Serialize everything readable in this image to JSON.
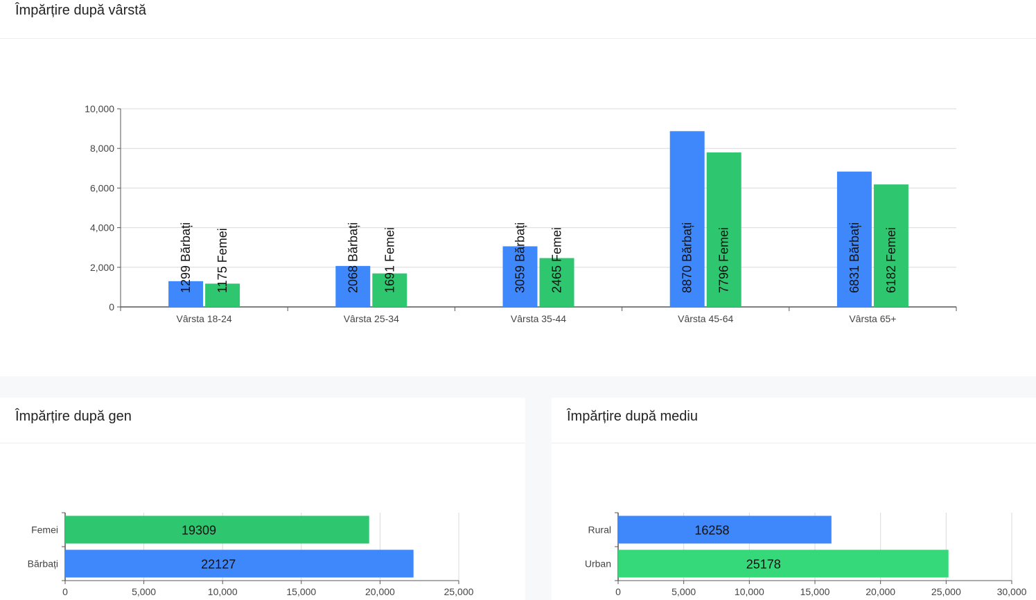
{
  "cards": {
    "age": {
      "title": "Împărțire după vârstă"
    },
    "gender": {
      "title": "Împărțire după gen"
    },
    "env": {
      "title": "Împărțire după mediu"
    }
  },
  "colors": {
    "blue": "#3f88fb",
    "green": "#2ec66e",
    "green_light": "#36d97a",
    "grid": "#d9d9d9",
    "axis": "#555555"
  },
  "chart_data": [
    {
      "type": "bar",
      "title": "Împărțire după vârstă",
      "categories": [
        "Vârsta 18-24",
        "Vârsta 25-34",
        "Vârsta 35-44",
        "Vârsta 45-64",
        "Vârsta 65+"
      ],
      "series": [
        {
          "name": "Bărbați",
          "color": "#3f88fb",
          "values": [
            1299,
            2068,
            3059,
            8870,
            6831
          ],
          "labels": [
            "1299 Bărbați",
            "2068 Bărbați",
            "3059 Bărbați",
            "8870 Bărbați",
            "6831 Bărbați"
          ]
        },
        {
          "name": "Femei",
          "color": "#2ec66e",
          "values": [
            1175,
            1691,
            2465,
            7796,
            6182
          ],
          "labels": [
            "1175 Femei",
            "1691 Femei",
            "2465 Femei",
            "7796 Femei",
            "6182 Femei"
          ]
        }
      ],
      "ylim": [
        0,
        10000
      ],
      "yticks": [
        "0",
        "2,000",
        "4,000",
        "6,000",
        "8,000",
        "10,000"
      ],
      "ytick_values": [
        0,
        2000,
        4000,
        6000,
        8000,
        10000
      ],
      "grid": true
    },
    {
      "type": "bar",
      "orientation": "horizontal",
      "title": "Împărțire după gen",
      "categories": [
        "Femei",
        "Bărbați"
      ],
      "values": [
        19309,
        22127
      ],
      "labels": [
        "19309",
        "22127"
      ],
      "colors": [
        "#2ec66e",
        "#3f88fb"
      ],
      "xlim": [
        0,
        25000
      ],
      "xticks": [
        "0",
        "5,000",
        "10,000",
        "15,000",
        "20,000",
        "25,000"
      ],
      "xtick_values": [
        0,
        5000,
        10000,
        15000,
        20000,
        25000
      ],
      "grid": true
    },
    {
      "type": "bar",
      "orientation": "horizontal",
      "title": "Împărțire după mediu",
      "categories": [
        "Rural",
        "Urban"
      ],
      "values": [
        16258,
        25178
      ],
      "labels": [
        "16258",
        "25178"
      ],
      "colors": [
        "#3f88fb",
        "#36d97a"
      ],
      "xlim": [
        0,
        30000
      ],
      "xticks": [
        "0",
        "5,000",
        "10,000",
        "15,000",
        "20,000",
        "25,000",
        "30,000"
      ],
      "xtick_values": [
        0,
        5000,
        10000,
        15000,
        20000,
        25000,
        30000
      ],
      "grid": true
    }
  ]
}
